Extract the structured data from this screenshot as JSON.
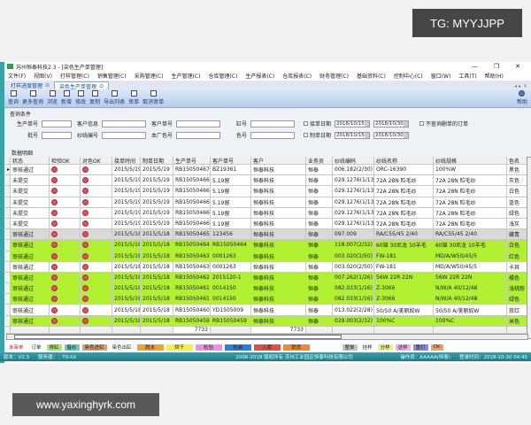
{
  "watermarks": {
    "top": "TG: MYYJJPP",
    "bottom": "www.yaxinghyrk.com"
  },
  "window": {
    "title": "苏州恒泰科技2.3 - [染色生产单管理]",
    "controls": [
      "—",
      "❐",
      "✕"
    ]
  },
  "menu": [
    "文件(F)",
    "视图(V)",
    "打样管理(C)",
    "销售管理(C)",
    "采购管理(C)",
    "生产管理(C)",
    "仓库管理(C)",
    "生产报表(C)",
    "仓库报表(C)",
    "财务管理(C)",
    "基础资料(C)",
    "控制中心(C)",
    "窗口(W)",
    "工具(T)",
    "帮助(H)"
  ],
  "tabs": [
    {
      "label": "打样进度管理",
      "active": false
    },
    {
      "label": "染色生产单管理",
      "active": true
    }
  ],
  "tab_controls": "◂ ▸ ✕",
  "toolbar": [
    "查询",
    "更多查询",
    "浏览",
    "新增",
    "修改",
    "复制",
    "导出列表",
    "审单",
    "取消审单"
  ],
  "toolbar_help": "帮助",
  "query": {
    "title": "查询条件",
    "row1": {
      "labels": [
        "生产单号",
        "客户信息",
        "客户单号",
        "缸号"
      ],
      "date_label": "接单日期",
      "from": "2018/10/15",
      "to": "2018/10/30",
      "extra": "不查询删单的订单"
    },
    "row2": {
      "labels": [
        "批号",
        "纱线编号",
        "本厂色号",
        "色号"
      ],
      "date_label": "制单日期",
      "from": "2018/10/15",
      "to": "2018/10/30"
    }
  },
  "detail_title": "数据明细",
  "grid": {
    "columns": [
      "状态",
      "检验OK",
      "对色OK",
      "接单时间",
      "制单日期",
      "生产单号",
      "客户单号",
      "客户",
      "业务员",
      "纱线编码",
      "纱线名称",
      "纱线规格",
      "色名"
    ],
    "row_colors": {
      "white": "#ffffff",
      "grey": "#d9d9d9",
      "green": "#b0f030"
    },
    "rows": [
      {
        "style": "white",
        "cells": [
          "审核通过",
          "x",
          "x",
          "2015/5/19",
          "2015/5/19",
          "RB15050467",
          "BZ19361",
          "恒泰科技",
          "恒泰",
          "006.182(2/30)",
          "ORC-16390",
          "100%W",
          "黑色"
        ]
      },
      {
        "style": "white",
        "cells": [
          "未提交",
          "x",
          "x",
          "2015/5/19",
          "2015/5/19",
          "RB15050466",
          "5.19留",
          "恒泰科技",
          "恒泰",
          "029.1276(1/13)",
          "72A  28N 粒毛纱",
          "72A  28N 粒毛纱",
          "灰色"
        ]
      },
      {
        "style": "white",
        "cells": [
          "未提交",
          "x",
          "x",
          "2015/5/19",
          "2015/5/19",
          "RB15050466",
          "5.19留",
          "恒泰科技",
          "恒泰",
          "029.1276(1/13)",
          "72A  28N 粒毛纱",
          "72A  28N 粒毛纱",
          "白色"
        ]
      },
      {
        "style": "white",
        "cells": [
          "未提交",
          "x",
          "x",
          "2015/5/19",
          "2015/5/19",
          "RB15050466",
          "5.19留",
          "恒泰科技",
          "恒泰",
          "029.1276(1/13)",
          "72A  28N 粒毛纱",
          "72A  28N 粒毛纱",
          "蓝色"
        ]
      },
      {
        "style": "white",
        "cells": [
          "未提交",
          "x",
          "x",
          "2015/5/19",
          "2015/5/19",
          "RB15050466",
          "5.19留",
          "恒泰科技",
          "恒泰",
          "029.1276(1/13)",
          "72A  28N 粒毛纱",
          "72A  28N 粒毛纱",
          "绿色"
        ]
      },
      {
        "style": "white",
        "cells": [
          "未提交",
          "x",
          "x",
          "2015/5/19",
          "2015/5/19",
          "RB15050466",
          "5.19留",
          "恒泰科技",
          "恒泰",
          "029.1276(1/13)",
          "72A  28N 粒毛纱",
          "72A  28N 粒毛纱",
          "浅灰"
        ]
      },
      {
        "style": "grey",
        "cells": [
          "审核通过",
          "x",
          "x",
          "2015/5/18",
          "2015/5/18",
          "RB15050465",
          "123456",
          "恒泰科技",
          "恒泰",
          "097.009",
          "RA/C55/45 2/40",
          "RA/C55/45 2/40",
          "藏青"
        ]
      },
      {
        "style": "green",
        "cells": [
          "审核通过",
          "x",
          "x",
          "2015/5/18",
          "2015/5/18",
          "RB15050464",
          "RB15050464",
          "恒泰科技",
          "恒泰",
          "118.007(2/32)",
          "60锦 30尼龙 10羊毛",
          "60锦 30尼龙 10羊毛",
          "白色"
        ]
      },
      {
        "style": "green",
        "cells": [
          "审核通过",
          "x",
          "x",
          "2015/5/18",
          "2015/5/18",
          "RB15050463",
          "0001263",
          "恒泰科技",
          "恒泰",
          "003.020(2/50)",
          "FW-181",
          "MD/A/W50/45/5",
          "红色"
        ]
      },
      {
        "style": "white",
        "cells": [
          "审核通过",
          "x",
          "x",
          "2015/5/18",
          "2015/5/18",
          "RB15050463",
          "0001263",
          "恒泰科技",
          "恒泰",
          "003.020(2/50)",
          "FW-181",
          "MD/A/W50/45/5",
          "卡其"
        ]
      },
      {
        "style": "green",
        "cells": [
          "审核通过",
          "x",
          "x",
          "2015/5/18",
          "2015/5/18",
          "RB15050462",
          "2015120-1",
          "恒泰科技",
          "恒泰",
          "007.262(1/26)",
          "56W 22R  22N",
          "56W 22R  22N",
          "橘色"
        ]
      },
      {
        "style": "green",
        "cells": [
          "审核通过",
          "x",
          "x",
          "2015/5/18",
          "2015/5/18",
          "RB15050461",
          "0014150",
          "恒泰科技",
          "恒泰",
          "082.033(1/16)",
          "Z-3066",
          "N/W/A 40/12/48",
          "浅桃粉"
        ]
      },
      {
        "style": "green",
        "cells": [
          "审核通过",
          "x",
          "x",
          "2015/5/18",
          "2015/5/18",
          "RB15050461",
          "0014150",
          "恒泰科技",
          "恒泰",
          "082.033(1/16)",
          "Z-3066",
          "N/W/A 40/12/48",
          "绿色"
        ]
      },
      {
        "style": "white",
        "cells": [
          "审核通过",
          "x",
          "x",
          "2015/5/18",
          "2015/5/18",
          "RB15050460",
          "YD1505009",
          "恒泰科技",
          "恒泰",
          "013.022(2/28)",
          "50/50 A/美丽奴W",
          "50/50 A/美丽奴W",
          "玫红"
        ]
      },
      {
        "style": "green",
        "cells": [
          "审核通过",
          "x",
          "x",
          "2015/5/18",
          "2015/5/18",
          "RB15050459",
          "RB15050459",
          "恒泰科技",
          "恒泰",
          "029.003(2/32)",
          "100%C",
          "100%C",
          "米色"
        ]
      }
    ],
    "totals": {
      "col5": "7733",
      "col7": "7733"
    }
  },
  "legend": [
    {
      "label": "未审单",
      "color": "#ffffff",
      "text": "#d02020"
    },
    {
      "label": "订单",
      "color": "#ffffff"
    },
    {
      "label": "排缸",
      "color": "#a8e868"
    },
    {
      "label": "备纱",
      "color": "#60d0c0"
    },
    {
      "label": "染色进缸",
      "color": "#e0a070"
    },
    {
      "label": "染色出缸",
      "color": "#ffffff"
    },
    {
      "label": "脱水",
      "color": "#f0a030"
    },
    {
      "label": "烘干",
      "color": "#f8f040"
    },
    {
      "label": "检验",
      "color": "#f090e0"
    },
    {
      "label": "包装",
      "color": "#2a80e0"
    },
    {
      "label": "入库",
      "color": "#e05040"
    },
    {
      "label": "销货",
      "color": "#f08a30"
    },
    {
      "label": "整单",
      "color": "#c4c4c4",
      "gap": true
    },
    {
      "label": "挂样",
      "color": "#ffffff"
    },
    {
      "label": "分样",
      "color": "#f0f080"
    },
    {
      "label": "送样",
      "color": "#f0b0f0"
    },
    {
      "label": "重打",
      "color": "#8888f0"
    },
    {
      "label": "OK",
      "color": "#f0a060"
    }
  ],
  "status": {
    "version": "版本：V2.3",
    "server": "服务器：  .   TX-XX",
    "copyright": "2006-2018 版权所有  苏州工业园区恒泰科技有限公司",
    "operator": "操作员：AAAAA(恒泰)",
    "login": "登录时间：2018-10-30 04:45"
  }
}
